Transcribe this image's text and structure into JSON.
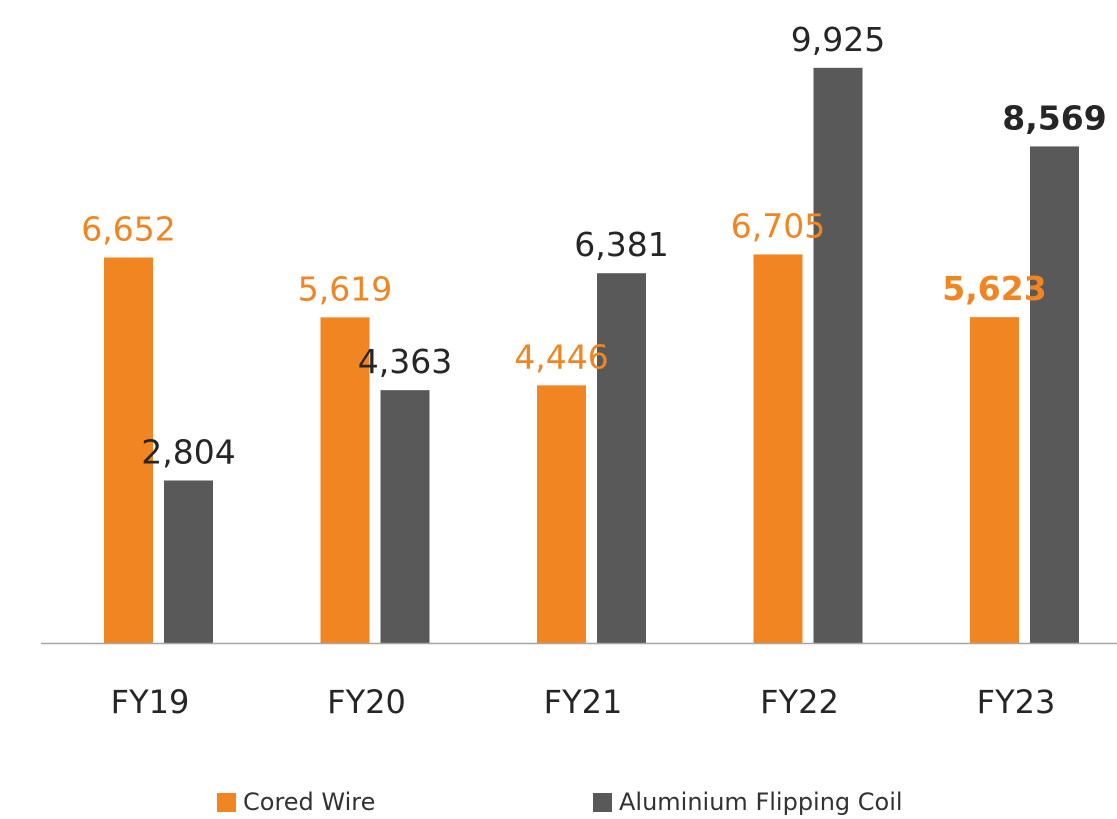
{
  "chart_data": {
    "type": "bar",
    "categories": [
      "FY19",
      "FY20",
      "FY21",
      "FY22",
      "FY23"
    ],
    "series": [
      {
        "name": "Cored Wire",
        "color": "#f08522",
        "values": [
          6652,
          5619,
          4446,
          6705,
          5623
        ],
        "labels": [
          "6,652",
          "5,619",
          "4,446",
          "6,705",
          "5,623"
        ],
        "bold": [
          false,
          false,
          false,
          false,
          true
        ]
      },
      {
        "name": "Aluminium Flipping Coil",
        "color": "#595959",
        "values": [
          2804,
          4363,
          6381,
          9925,
          8569
        ],
        "labels": [
          "2,804",
          "4,363",
          "6,381",
          "9,925",
          "8,569"
        ],
        "bold": [
          false,
          false,
          false,
          false,
          true
        ]
      }
    ],
    "ylim": [
      0,
      10250
    ],
    "grid": false,
    "legend_position": "bottom"
  }
}
